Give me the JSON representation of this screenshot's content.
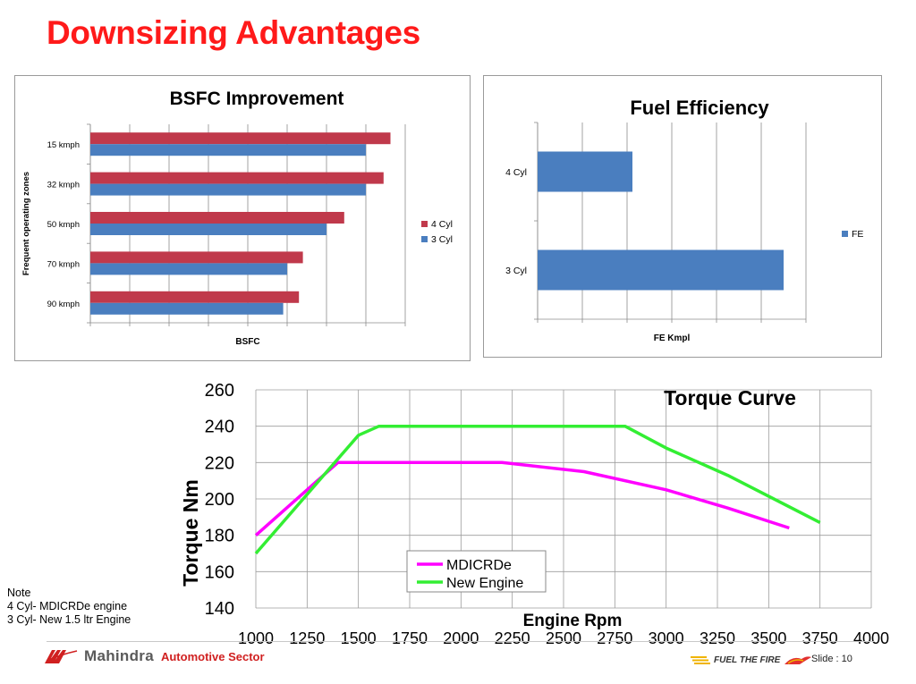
{
  "slide": {
    "title": "Downsizing Advantages",
    "note_lines": [
      "Note",
      "4 Cyl- MDICRDe engine",
      "3 Cyl- New 1.5 ltr Engine"
    ],
    "brand_name": "Mahindra",
    "brand_sector": "Automotive Sector",
    "tagline": "FUEL THE FIRE",
    "slide_number": "Slide : 10",
    "colors": {
      "title": "#ff1a1a",
      "four_cyl": "#c0394b",
      "three_cyl": "#4a7ebf",
      "mdicrde": "#ff00ff",
      "new_engine": "#33ee33"
    }
  },
  "chart_data": [
    {
      "type": "bar",
      "orientation": "horizontal",
      "title": "BSFC Improvement",
      "xlabel": "BSFC",
      "ylabel": "Frequent operating zones",
      "categories": [
        "15 kmph",
        "32 kmph",
        "50 kmph",
        "70 kmph",
        "90 kmph"
      ],
      "series": [
        {
          "name": "4 Cyl",
          "values": [
            305,
            298,
            258,
            216,
            212
          ],
          "color": "#c0394b"
        },
        {
          "name": "3 Cyl",
          "values": [
            280,
            280,
            240,
            200,
            196
          ],
          "color": "#4a7ebf"
        }
      ],
      "xlim": [
        0,
        320
      ],
      "x_tick_count": 8,
      "grid": true,
      "legend": "right"
    },
    {
      "type": "bar",
      "orientation": "horizontal",
      "title": "Fuel Efficiency",
      "xlabel": "FE Kmpl",
      "ylabel": "",
      "categories": [
        "4 Cyl",
        "3 Cyl"
      ],
      "series": [
        {
          "name": "FE",
          "values": [
            10.6,
            27.5
          ],
          "color": "#4a7ebf"
        }
      ],
      "xlim": [
        0,
        30
      ],
      "x_tick_count": 6,
      "grid": true,
      "legend": "right"
    },
    {
      "type": "line",
      "title": "Torque Curve",
      "xlabel": "Engine Rpm",
      "ylabel": "Torque Nm",
      "xlim": [
        1000,
        4000
      ],
      "ylim": [
        140,
        260
      ],
      "x_ticks": [
        1000,
        1250,
        1500,
        1750,
        2000,
        2250,
        2500,
        2750,
        3000,
        3250,
        3500,
        3750,
        4000
      ],
      "y_ticks": [
        140,
        160,
        180,
        200,
        220,
        240,
        260
      ],
      "grid": true,
      "legend": "bottom-center",
      "series": [
        {
          "name": "MDICRDe",
          "color": "#ff00ff",
          "x": [
            1000,
            1400,
            1750,
            2200,
            2600,
            3000,
            3300,
            3600
          ],
          "y": [
            180,
            220,
            220,
            220,
            215,
            205,
            195,
            184
          ]
        },
        {
          "name": "New Engine",
          "color": "#33ee33",
          "x": [
            1000,
            1500,
            1600,
            2200,
            2800,
            3000,
            3300,
            3750
          ],
          "y": [
            170,
            235,
            240,
            240,
            240,
            228,
            213,
            187
          ]
        }
      ]
    }
  ]
}
